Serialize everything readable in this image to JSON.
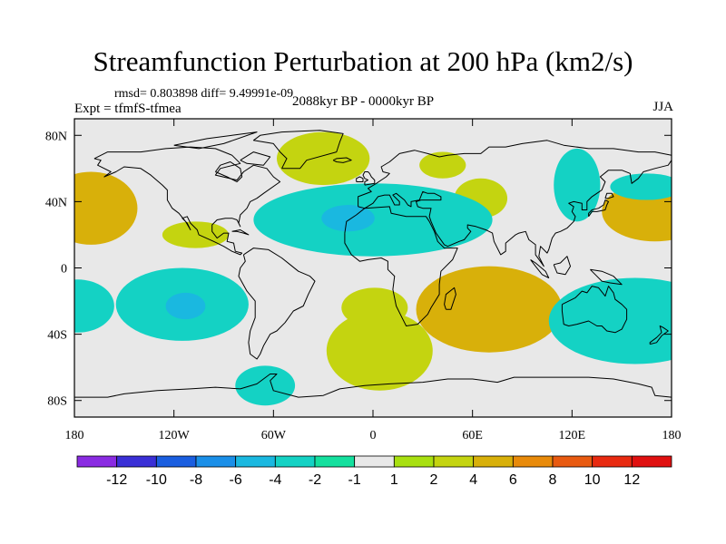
{
  "chart_data": {
    "type": "contour_map",
    "title": "Streamfunction Perturbation at 200 hPa (km2/s)",
    "stats_text": "rmsd= 0.803898 diff= 9.49991e-09",
    "left_label": "Expt = tfmfS-tfmea",
    "center_label": "2088kyr BP - 0000kyr BP",
    "right_label": "JJA",
    "x_axis": {
      "range": [
        -180,
        180
      ],
      "ticks": [
        -180,
        -120,
        -60,
        0,
        60,
        120,
        180
      ],
      "tick_labels": [
        "180",
        "120W",
        "60W",
        "0",
        "60E",
        "120E",
        "180"
      ]
    },
    "y_axis": {
      "range": [
        -90,
        90
      ],
      "ticks": [
        80,
        40,
        0,
        -40,
        -80
      ],
      "tick_labels": [
        "80N",
        "40N",
        "0",
        "40S",
        "80S"
      ]
    },
    "colorbar": {
      "labels": [
        "-12",
        "-10",
        "-8",
        "-6",
        "-4",
        "-2",
        "-1",
        "1",
        "2",
        "4",
        "6",
        "8",
        "10",
        "12"
      ],
      "colors": [
        "#8a2be2",
        "#3a2fd6",
        "#1a5ee0",
        "#1a8fe8",
        "#1ab8e0",
        "#14d2c4",
        "#14e09e",
        "#e8e8e8",
        "#a8e010",
        "#c4d410",
        "#d8b00a",
        "#e88a0a",
        "#e85a10",
        "#e82a10",
        "#e01010"
      ]
    },
    "background_color": "#e8e8e8",
    "anomalies": [
      {
        "name": "pacific-north-east",
        "lon": -170,
        "lat": 36,
        "rx": 14,
        "ry": 11,
        "value": 4
      },
      {
        "name": "pacific-north-west",
        "lon": 170,
        "lat": 34,
        "rx": 16,
        "ry": 9,
        "value": 4
      },
      {
        "name": "central-america",
        "lon": -107,
        "lat": 20,
        "rx": 10,
        "ry": 4,
        "value": 2
      },
      {
        "name": "north-atlantic",
        "lon": -30,
        "lat": 66,
        "rx": 14,
        "ry": 8,
        "value": 2
      },
      {
        "name": "europe-north",
        "lon": 42,
        "lat": 62,
        "rx": 7,
        "ry": 4,
        "value": 2
      },
      {
        "name": "central-asia",
        "lon": 65,
        "lat": 42,
        "rx": 8,
        "ry": 6,
        "value": 2
      },
      {
        "name": "north-africa-mediterranean",
        "lon": 0,
        "lat": 29,
        "rx": 36,
        "ry": 11,
        "value": -2
      },
      {
        "name": "north-africa-core",
        "lon": -15,
        "lat": 30,
        "rx": 8,
        "ry": 4,
        "value": -4
      },
      {
        "name": "east-asia-strip",
        "lon": 123,
        "lat": 50,
        "rx": 7,
        "ry": 11,
        "value": -2
      },
      {
        "name": "north-pacific-east",
        "lon": 165,
        "lat": 49,
        "rx": 11,
        "ry": 4,
        "value": -2
      },
      {
        "name": "south-pacific",
        "lon": -115,
        "lat": -22,
        "rx": 20,
        "ry": 11,
        "value": -2
      },
      {
        "name": "south-pacific-core",
        "lon": -113,
        "lat": -23,
        "rx": 6,
        "ry": 4,
        "value": -4
      },
      {
        "name": "south-pacific-west-edge",
        "lon": -178,
        "lat": -23,
        "rx": 11,
        "ry": 8,
        "value": -2
      },
      {
        "name": "south-atlantic",
        "lon": 4,
        "lat": -50,
        "rx": 16,
        "ry": 12,
        "value": 2
      },
      {
        "name": "south-atlantic-small",
        "lon": 1,
        "lat": -24,
        "rx": 10,
        "ry": 6,
        "value": 2
      },
      {
        "name": "indian-ocean-south",
        "lon": 70,
        "lat": -25,
        "rx": 22,
        "ry": 13,
        "value": 4
      },
      {
        "name": "australia-south",
        "lon": 158,
        "lat": -32,
        "rx": 26,
        "ry": 13,
        "value": -2
      },
      {
        "name": "antarctic-peninsula",
        "lon": -65,
        "lat": -71,
        "rx": 9,
        "ry": 6,
        "value": -2
      }
    ]
  }
}
